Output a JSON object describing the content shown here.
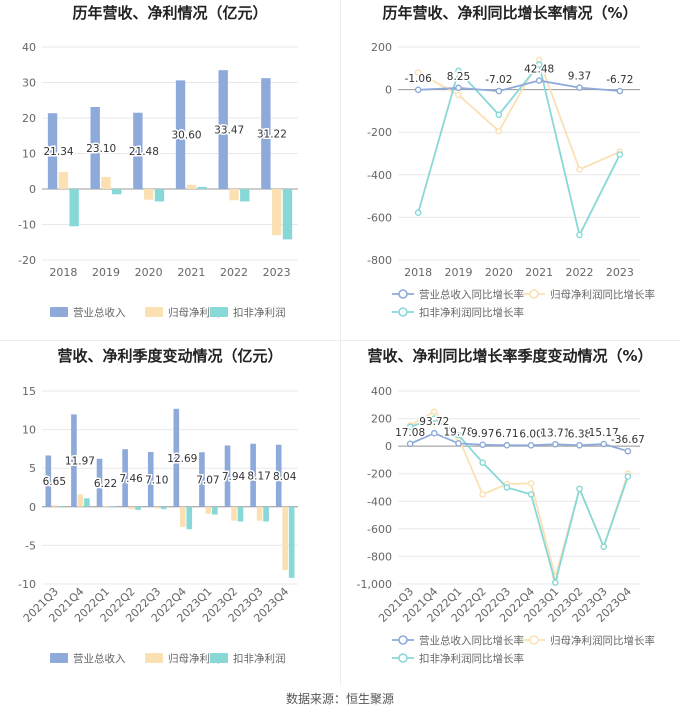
{
  "colors": {
    "revenue": "#8eaadb",
    "parent_profit": "#fbe0b4",
    "deducted_profit": "#88d8d8",
    "grid": "#e8e8e8",
    "axis": "#999999",
    "text": "#666666"
  },
  "source": "数据来源：恒生聚源",
  "chart_data": [
    {
      "id": "annual-bar",
      "type": "bar",
      "title": "历年营收、净利情况（亿元）",
      "categories": [
        "2018",
        "2019",
        "2020",
        "2021",
        "2022",
        "2023"
      ],
      "ylim": [
        -20,
        40
      ],
      "yticks": [
        -20,
        -10,
        0,
        10,
        20,
        30,
        40
      ],
      "series": [
        {
          "name": "营业总收入",
          "color": "#8eaadb",
          "values": [
            21.34,
            23.1,
            21.48,
            30.6,
            33.47,
            31.22
          ],
          "show_labels": true,
          "labels": [
            "21.34",
            "23.10",
            "21.48",
            "30.60",
            "33.47",
            "31.22"
          ]
        },
        {
          "name": "归母净利润",
          "color": "#fbe0b4",
          "values": [
            4.8,
            3.4,
            -3.0,
            1.2,
            -3.2,
            -13.0
          ]
        },
        {
          "name": "扣非净利润",
          "color": "#88d8d8",
          "values": [
            -10.5,
            -1.5,
            -3.5,
            0.6,
            -3.5,
            -14.2
          ]
        }
      ],
      "legend": [
        "营业总收入",
        "归母净利润",
        "扣非净利润"
      ]
    },
    {
      "id": "annual-growth",
      "type": "line",
      "title": "历年营收、净利同比增长率情况（%）",
      "categories": [
        "2018",
        "2019",
        "2020",
        "2021",
        "2022",
        "2023"
      ],
      "ylim": [
        -800,
        200
      ],
      "yticks": [
        -800,
        -600,
        -400,
        -200,
        0,
        200
      ],
      "series": [
        {
          "name": "营业总收入同比增长率",
          "color": "#8eaadb",
          "values": [
            -1.06,
            8.25,
            -7.02,
            42.48,
            9.37,
            -6.72
          ],
          "show_labels": true,
          "labels": [
            "-1.06",
            "8.25",
            "-7.02",
            "42.48",
            "9.37",
            "-6.72"
          ]
        },
        {
          "name": "归母净利润同比增长率",
          "color": "#fbe0b4",
          "values": [
            80,
            -25,
            -195,
            140,
            -375,
            -292
          ]
        },
        {
          "name": "扣非净利润同比增长率",
          "color": "#88d8d8",
          "values": [
            -578,
            88,
            -118,
            118,
            -683,
            -305
          ]
        }
      ],
      "legend": [
        "营业总收入同比增长率",
        "归母净利润同比增长率",
        "扣非净利润同比增长率"
      ]
    },
    {
      "id": "quarterly-bar",
      "type": "bar",
      "title": "营收、净利季度变动情况（亿元）",
      "categories": [
        "2021Q3",
        "2021Q4",
        "2022Q1",
        "2022Q2",
        "2022Q3",
        "2022Q4",
        "2023Q1",
        "2023Q2",
        "2023Q3",
        "2023Q4"
      ],
      "ylim": [
        -10,
        15
      ],
      "yticks": [
        -10,
        -5,
        0,
        5,
        10,
        15
      ],
      "series": [
        {
          "name": "营业总收入",
          "color": "#8eaadb",
          "values": [
            6.65,
            11.97,
            6.22,
            7.46,
            7.1,
            12.69,
            7.07,
            7.94,
            8.17,
            8.04
          ],
          "show_labels": true,
          "labels": [
            "6.65",
            "11.97",
            "6.22",
            "7.46",
            "7.10",
            "12.69",
            "7.07",
            "7.94",
            "8.17",
            "8.04"
          ]
        },
        {
          "name": "归母净利润",
          "color": "#fbe0b4",
          "values": [
            0.2,
            1.6,
            0.1,
            -0.3,
            -0.2,
            -2.6,
            -0.9,
            -1.8,
            -1.8,
            -8.2
          ]
        },
        {
          "name": "扣非净利润",
          "color": "#88d8d8",
          "values": [
            0.1,
            1.1,
            0.05,
            -0.4,
            -0.3,
            -2.9,
            -1.0,
            -1.9,
            -1.9,
            -9.2
          ]
        }
      ],
      "legend": [
        "营业总收入",
        "归母净利润",
        "扣非净利润"
      ]
    },
    {
      "id": "quarterly-growth",
      "type": "line",
      "title": "营收、净利同比增长率季度变动情况（%）",
      "categories": [
        "2021Q3",
        "2021Q4",
        "2022Q1",
        "2022Q2",
        "2022Q3",
        "2022Q4",
        "2023Q1",
        "2023Q2",
        "2023Q3",
        "2023Q4"
      ],
      "ylim": [
        -1000,
        400
      ],
      "yticks": [
        -1000,
        -800,
        -600,
        -400,
        -200,
        0,
        200,
        400
      ],
      "series": [
        {
          "name": "营业总收入同比增长率",
          "color": "#8eaadb",
          "values": [
            17.08,
            93.72,
            19.78,
            9.97,
            6.71,
            6.0,
            13.71,
            6.38,
            15.17,
            -36.67
          ],
          "show_labels": true,
          "labels": [
            "17.08",
            "93.72",
            "19.78",
            "9.97",
            "6.71",
            "6.00",
            "13.71",
            "6.38",
            "15.17",
            "-36.67"
          ]
        },
        {
          "name": "归母净利润同比增长率",
          "color": "#fbe0b4",
          "values": [
            150,
            250,
            60,
            -350,
            -275,
            -270,
            -950,
            -310,
            -730,
            -200
          ]
        },
        {
          "name": "扣非净利润同比增长率",
          "color": "#88d8d8",
          "values": [
            140,
            200,
            80,
            -120,
            -300,
            -350,
            -990,
            -310,
            -730,
            -220
          ]
        }
      ],
      "legend": [
        "营业总收入同比增长率",
        "归母净利润同比增长率",
        "扣非净利润同比增长率"
      ]
    }
  ]
}
